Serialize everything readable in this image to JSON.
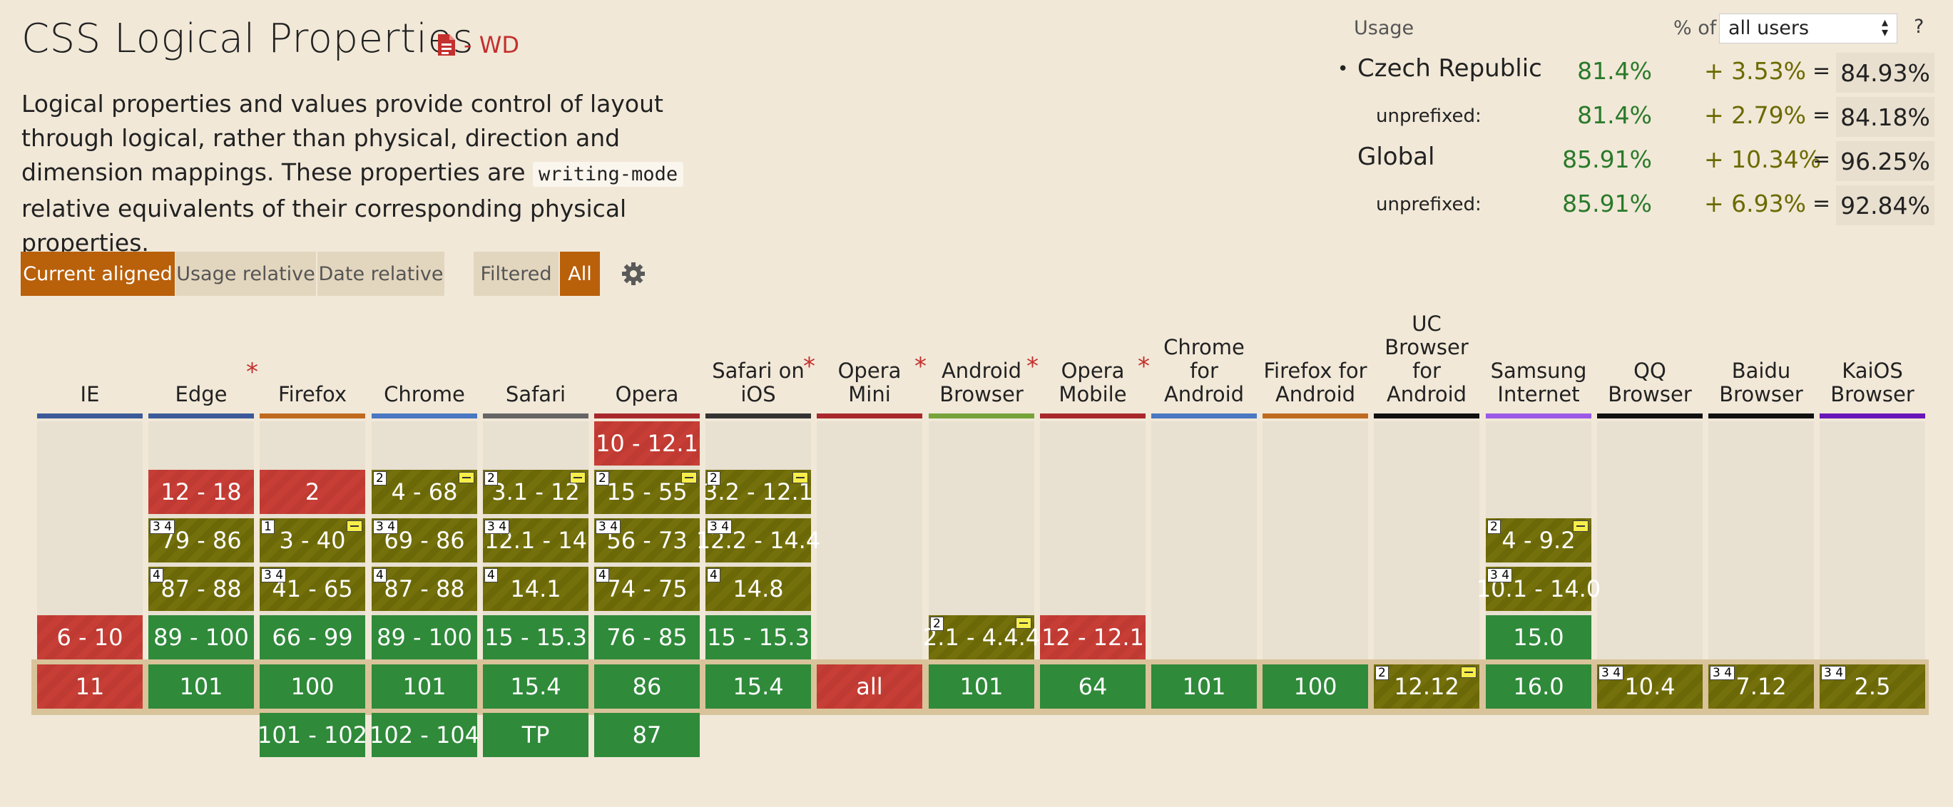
{
  "feature": {
    "title": "CSS Logical Properties",
    "status": "- WD",
    "desc_before": "Logical properties and values provide control of layout through logical, rather than physical, direction and dimension mappings. These properties are ",
    "desc_code": "writing-mode",
    "desc_after": " relative equivalents of their corresponding physical properties."
  },
  "view_buttons": {
    "current": "Current aligned",
    "usage": "Usage relative",
    "date": "Date relative"
  },
  "filter_buttons": {
    "filtered": "Filtered",
    "all": "All"
  },
  "icons": {
    "status": "document-icon",
    "settings": "gear-icon"
  },
  "usage": {
    "label": "Usage",
    "pct_of": "% of",
    "select_value": "all users",
    "help": "?",
    "rows": [
      {
        "name": "Czech Republic",
        "bullet": "•",
        "supported": "81.4%",
        "partial": "+ 3.53%",
        "eq": "=",
        "total": "84.93%"
      },
      {
        "name": "unprefixed:",
        "supported": "81.4%",
        "partial": "+ 2.79%",
        "eq": "=",
        "total": "84.18%"
      },
      {
        "name": "Global",
        "supported": "85.91%",
        "partial": "+ 10.34%",
        "eq": "=",
        "total": "96.25%"
      },
      {
        "name": "unprefixed:",
        "supported": "85.91%",
        "partial": "+ 6.93%",
        "eq": "=",
        "total": "92.84%"
      }
    ]
  },
  "colors": {
    "supported": "#2f8a3a",
    "unsupported": "#c73e36",
    "partial": "#74700b",
    "accent": "#b9600a"
  },
  "browsers": [
    {
      "name": "IE",
      "asterisk": false,
      "bar": "#3c5a99",
      "cells": [
        {
          "row": 4,
          "text": "6 - 10",
          "s": "n"
        },
        {
          "row": 5,
          "text": "11",
          "s": "n"
        }
      ]
    },
    {
      "name": "Edge",
      "asterisk": true,
      "bar": "#3c5a99",
      "cells": [
        {
          "row": 1,
          "text": "12 - 18",
          "s": "n"
        },
        {
          "row": 2,
          "text": "79 - 86",
          "s": "a",
          "note": "3 4"
        },
        {
          "row": 3,
          "text": "87 - 88",
          "s": "a",
          "note": "4"
        },
        {
          "row": 4,
          "text": "89 - 100",
          "s": "y"
        },
        {
          "row": 5,
          "text": "101",
          "s": "y"
        }
      ]
    },
    {
      "name": "Firefox",
      "asterisk": false,
      "bar": "#c06a1f",
      "cells": [
        {
          "row": 1,
          "text": "2",
          "s": "n"
        },
        {
          "row": 2,
          "text": "3 - 40",
          "s": "a",
          "note": "1",
          "flag": true
        },
        {
          "row": 3,
          "text": "41 - 65",
          "s": "a",
          "note": "3 4"
        },
        {
          "row": 4,
          "text": "66 - 99",
          "s": "y"
        },
        {
          "row": 5,
          "text": "100",
          "s": "y"
        },
        {
          "row": 6,
          "text": "101 - 102",
          "s": "y"
        }
      ]
    },
    {
      "name": "Chrome",
      "asterisk": false,
      "bar": "#4a78c2",
      "cells": [
        {
          "row": 1,
          "text": "4 - 68",
          "s": "a",
          "note": "2",
          "flag": true
        },
        {
          "row": 2,
          "text": "69 - 86",
          "s": "a",
          "note": "3 4"
        },
        {
          "row": 3,
          "text": "87 - 88",
          "s": "a",
          "note": "4"
        },
        {
          "row": 4,
          "text": "89 - 100",
          "s": "y"
        },
        {
          "row": 5,
          "text": "101",
          "s": "y"
        },
        {
          "row": 6,
          "text": "102 - 104",
          "s": "y"
        }
      ]
    },
    {
      "name": "Safari",
      "asterisk": false,
      "bar": "#666666",
      "cells": [
        {
          "row": 1,
          "text": "3.1 - 12",
          "s": "a",
          "note": "2",
          "flag": true
        },
        {
          "row": 2,
          "text": "12.1 - 14",
          "s": "a",
          "note": "3 4"
        },
        {
          "row": 3,
          "text": "14.1",
          "s": "a",
          "note": "4"
        },
        {
          "row": 4,
          "text": "15 - 15.3",
          "s": "y"
        },
        {
          "row": 5,
          "text": "15.4",
          "s": "y"
        },
        {
          "row": 6,
          "text": "TP",
          "s": "y"
        }
      ]
    },
    {
      "name": "Opera",
      "asterisk": false,
      "bar": "#a8282c",
      "cells": [
        {
          "row": 0,
          "text": "10 - 12.1",
          "s": "n"
        },
        {
          "row": 1,
          "text": "15 - 55",
          "s": "a",
          "note": "2",
          "flag": true
        },
        {
          "row": 2,
          "text": "56 - 73",
          "s": "a",
          "note": "3 4"
        },
        {
          "row": 3,
          "text": "74 - 75",
          "s": "a",
          "note": "4"
        },
        {
          "row": 4,
          "text": "76 - 85",
          "s": "y"
        },
        {
          "row": 5,
          "text": "86",
          "s": "y"
        },
        {
          "row": 6,
          "text": "87",
          "s": "y"
        }
      ]
    },
    {
      "name": "Safari on iOS",
      "asterisk": true,
      "bar": "#333333",
      "cells": [
        {
          "row": 1,
          "text": "3.2 - 12.1",
          "s": "a",
          "note": "2",
          "flag": true
        },
        {
          "row": 2,
          "text": "12.2 - 14.4",
          "s": "a",
          "note": "3 4"
        },
        {
          "row": 3,
          "text": "14.8",
          "s": "a",
          "note": "4"
        },
        {
          "row": 4,
          "text": "15 - 15.3",
          "s": "y"
        },
        {
          "row": 5,
          "text": "15.4",
          "s": "y"
        }
      ]
    },
    {
      "name": "Opera Mini",
      "asterisk": true,
      "bar": "#a8282c",
      "cells": [
        {
          "row": 5,
          "text": "all",
          "s": "n"
        }
      ]
    },
    {
      "name": "Android Browser",
      "asterisk": true,
      "bar": "#76a33a",
      "cells": [
        {
          "row": 4,
          "text": "2.1 - 4.4.4",
          "s": "a",
          "note": "2",
          "flag": true
        },
        {
          "row": 5,
          "text": "101",
          "s": "y"
        }
      ]
    },
    {
      "name": "Opera Mobile",
      "asterisk": true,
      "bar": "#a8282c",
      "cells": [
        {
          "row": 4,
          "text": "12 - 12.1",
          "s": "n"
        },
        {
          "row": 5,
          "text": "64",
          "s": "y"
        }
      ]
    },
    {
      "name": "Chrome for Android",
      "asterisk": false,
      "bar": "#4a78c2",
      "cells": [
        {
          "row": 5,
          "text": "101",
          "s": "y"
        }
      ]
    },
    {
      "name": "Firefox for Android",
      "asterisk": false,
      "bar": "#c06a1f",
      "cells": [
        {
          "row": 5,
          "text": "100",
          "s": "y"
        }
      ]
    },
    {
      "name": "UC Browser for Android",
      "asterisk": false,
      "bar": "#111111",
      "cells": [
        {
          "row": 5,
          "text": "12.12",
          "s": "a",
          "note": "2",
          "flag": true
        }
      ]
    },
    {
      "name": "Samsung Internet",
      "asterisk": false,
      "bar": "#9b59e6",
      "cells": [
        {
          "row": 2,
          "text": "4 - 9.2",
          "s": "a",
          "note": "2",
          "flag": true
        },
        {
          "row": 3,
          "text": "10.1 - 14.0",
          "s": "a",
          "note": "3 4"
        },
        {
          "row": 4,
          "text": "15.0",
          "s": "y"
        },
        {
          "row": 5,
          "text": "16.0",
          "s": "y"
        }
      ]
    },
    {
      "name": "QQ Browser",
      "asterisk": false,
      "bar": "#111111",
      "cells": [
        {
          "row": 5,
          "text": "10.4",
          "s": "a",
          "note": "3 4"
        }
      ]
    },
    {
      "name": "Baidu Browser",
      "asterisk": false,
      "bar": "#111111",
      "cells": [
        {
          "row": 5,
          "text": "7.12",
          "s": "a",
          "note": "3 4"
        }
      ]
    },
    {
      "name": "KaiOS Browser",
      "asterisk": false,
      "bar": "#6a16b8",
      "cells": [
        {
          "row": 5,
          "text": "2.5",
          "s": "a",
          "note": "3 4"
        }
      ]
    }
  ]
}
